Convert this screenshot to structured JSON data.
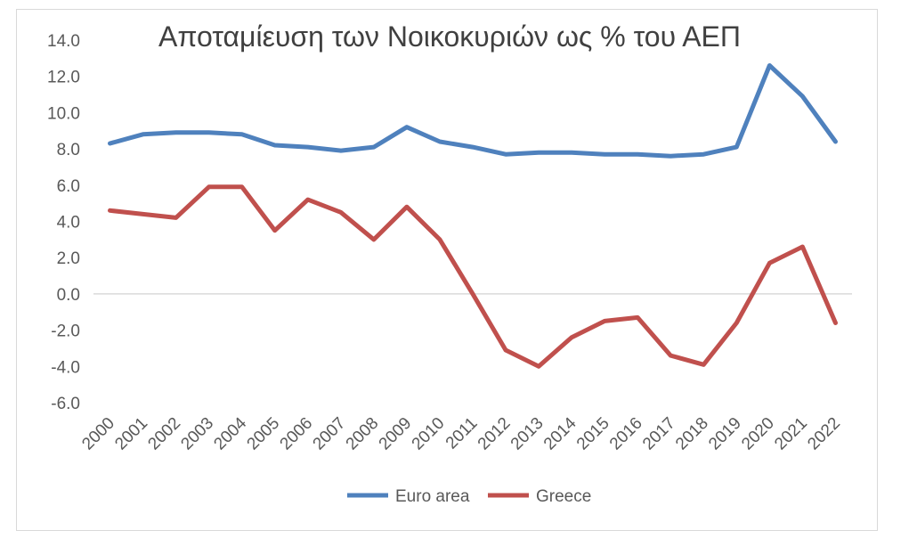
{
  "chart_data": {
    "type": "line",
    "title": "Αποταμίευση των Νοικοκυριών ως % του ΑΕΠ",
    "xlabel": "",
    "ylabel": "",
    "ylim": [
      -6.0,
      14.0
    ],
    "yticks": [
      "14.0",
      "12.0",
      "10.0",
      "8.0",
      "6.0",
      "4.0",
      "2.0",
      "0.0",
      "-2.0",
      "-4.0",
      "-6.0"
    ],
    "categories": [
      "2000",
      "2001",
      "2002",
      "2003",
      "2004",
      "2005",
      "2006",
      "2007",
      "2008",
      "2009",
      "2010",
      "2011",
      "2012",
      "2013",
      "2014",
      "2015",
      "2016",
      "2017",
      "2018",
      "2019",
      "2020",
      "2021",
      "2022"
    ],
    "series": [
      {
        "name": "Euro area",
        "color": "#4f81bd",
        "values": [
          8.3,
          8.8,
          8.9,
          8.9,
          8.8,
          8.2,
          8.1,
          7.9,
          8.1,
          9.2,
          8.4,
          8.1,
          7.7,
          7.8,
          7.8,
          7.7,
          7.7,
          7.6,
          7.7,
          8.1,
          12.6,
          10.9,
          8.4
        ]
      },
      {
        "name": "Greece",
        "color": "#c0504d",
        "values": [
          4.6,
          4.4,
          4.2,
          5.9,
          5.9,
          3.5,
          5.2,
          4.5,
          3.0,
          4.8,
          3.0,
          0.0,
          -3.1,
          -4.0,
          -2.4,
          -1.5,
          -1.3,
          -3.4,
          -3.9,
          -1.6,
          1.7,
          2.6,
          -1.6
        ]
      }
    ],
    "grid": false,
    "legend_position": "bottom"
  }
}
